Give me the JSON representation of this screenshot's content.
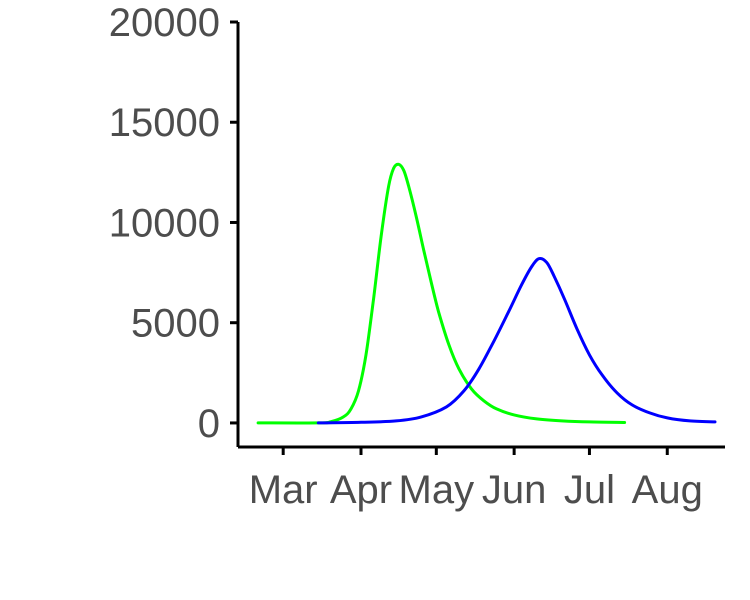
{
  "chart_data": {
    "type": "line",
    "title": "",
    "xlabel": "",
    "ylabel": "",
    "x_ticks": [
      "Mar",
      "Apr",
      "May",
      "Jun",
      "Jul",
      "Aug"
    ],
    "y_ticks": [
      0,
      5000,
      10000,
      15000,
      20000
    ],
    "ylim": [
      -1200,
      20000
    ],
    "xlim": [
      "2020-02-12",
      "2020-08-24"
    ],
    "grid": false,
    "legend": "none",
    "series": [
      {
        "color": "#00ff00",
        "x": [
          "2020-02-20",
          "2020-03-15",
          "2020-03-20",
          "2020-03-25",
          "2020-03-28",
          "2020-03-31",
          "2020-04-03",
          "2020-04-06",
          "2020-04-09",
          "2020-04-12",
          "2020-04-14",
          "2020-04-16",
          "2020-04-18",
          "2020-04-20",
          "2020-04-23",
          "2020-04-26",
          "2020-04-29",
          "2020-05-02",
          "2020-05-06",
          "2020-05-10",
          "2020-05-15",
          "2020-05-20",
          "2020-05-25",
          "2020-06-01",
          "2020-06-10",
          "2020-06-20",
          "2020-07-01",
          "2020-07-15"
        ],
        "y": [
          0,
          0,
          60,
          300,
          700,
          1600,
          3400,
          6200,
          9300,
          11800,
          12700,
          12900,
          12600,
          11800,
          10300,
          8600,
          7000,
          5500,
          3900,
          2700,
          1700,
          1100,
          700,
          400,
          200,
          100,
          50,
          20
        ]
      },
      {
        "color": "#0000ff",
        "x": [
          "2020-03-15",
          "2020-04-01",
          "2020-04-15",
          "2020-04-25",
          "2020-05-05",
          "2020-05-12",
          "2020-05-18",
          "2020-05-24",
          "2020-05-30",
          "2020-06-04",
          "2020-06-08",
          "2020-06-11",
          "2020-06-14",
          "2020-06-17",
          "2020-06-21",
          "2020-06-26",
          "2020-07-01",
          "2020-07-06",
          "2020-07-12",
          "2020-07-18",
          "2020-07-25",
          "2020-08-01",
          "2020-08-10",
          "2020-08-20"
        ],
        "y": [
          0,
          30,
          100,
          300,
          800,
          1600,
          2700,
          4100,
          5600,
          6900,
          7800,
          8200,
          8000,
          7300,
          6200,
          4700,
          3400,
          2400,
          1500,
          900,
          500,
          250,
          100,
          50
        ]
      }
    ]
  }
}
